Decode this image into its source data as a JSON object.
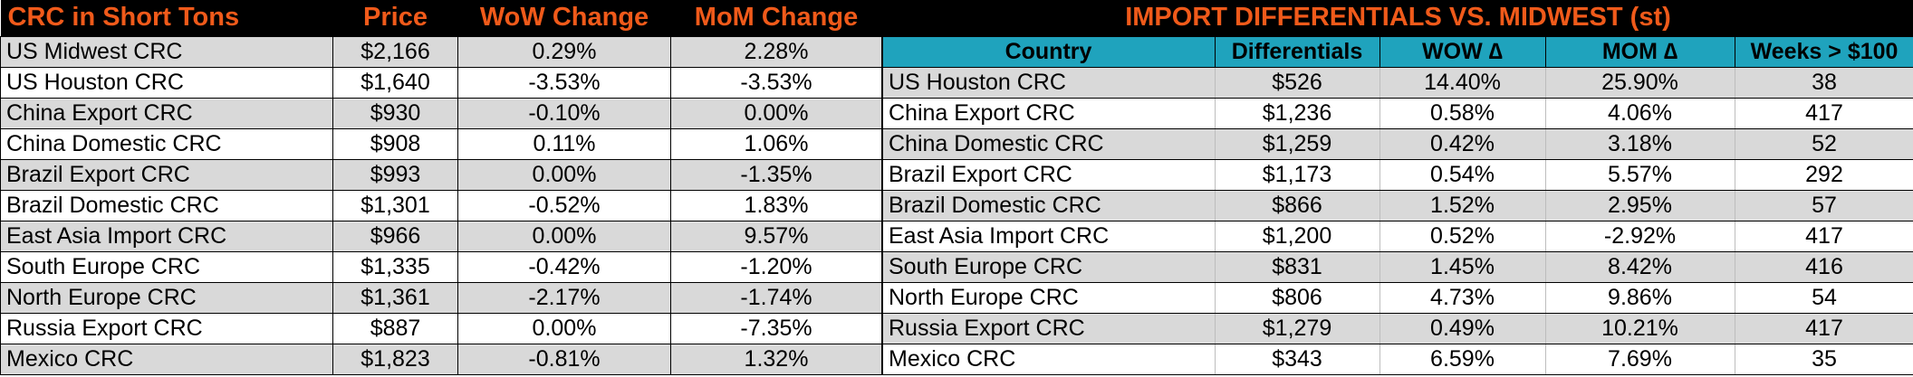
{
  "prices_table": {
    "headers": [
      "CRC in Short Tons",
      "Price",
      "WoW Change",
      "MoM Change"
    ],
    "rows": [
      [
        "US Midwest CRC",
        "$2,166",
        "0.29%",
        "2.28%"
      ],
      [
        "US Houston CRC",
        "$1,640",
        "-3.53%",
        "-3.53%"
      ],
      [
        "China Export CRC",
        "$930",
        "-0.10%",
        "0.00%"
      ],
      [
        "China Domestic CRC",
        "$908",
        "0.11%",
        "1.06%"
      ],
      [
        "Brazil Export CRC",
        "$993",
        "0.00%",
        "-1.35%"
      ],
      [
        "Brazil Domestic CRC",
        "$1,301",
        "-0.52%",
        "1.83%"
      ],
      [
        "East Asia Import CRC",
        "$966",
        "0.00%",
        "9.57%"
      ],
      [
        "South Europe CRC",
        "$1,335",
        "-0.42%",
        "-1.20%"
      ],
      [
        "North Europe CRC",
        "$1,361",
        "-2.17%",
        "-1.74%"
      ],
      [
        "Russia Export CRC",
        "$887",
        "0.00%",
        "-7.35%"
      ],
      [
        "Mexico CRC",
        "$1,823",
        "-0.81%",
        "1.32%"
      ]
    ]
  },
  "differentials_table": {
    "title": "IMPORT DIFFERENTIALS VS. MIDWEST (st)",
    "headers": [
      "Country",
      "Differentials",
      "WOW ∆",
      "MOM ∆",
      "Weeks > $100"
    ],
    "rows": [
      [
        "US Houston CRC",
        "$526",
        "14.40%",
        "25.90%",
        "38"
      ],
      [
        "China Export CRC",
        "$1,236",
        "0.58%",
        "4.06%",
        "417"
      ],
      [
        "China Domestic CRC",
        "$1,259",
        "0.42%",
        "3.18%",
        "52"
      ],
      [
        "Brazil Export CRC",
        "$1,173",
        "0.54%",
        "5.57%",
        "292"
      ],
      [
        "Brazil Domestic CRC",
        "$866",
        "1.52%",
        "2.95%",
        "57"
      ],
      [
        "East Asia Import CRC",
        "$1,200",
        "0.52%",
        "-2.92%",
        "417"
      ],
      [
        "South Europe CRC",
        "$831",
        "1.45%",
        "8.42%",
        "416"
      ],
      [
        "North Europe CRC",
        "$806",
        "4.73%",
        "9.86%",
        "54"
      ],
      [
        "Russia Export CRC",
        "$1,279",
        "0.49%",
        "10.21%",
        "417"
      ],
      [
        "Mexico CRC",
        "$343",
        "6.59%",
        "7.69%",
        "35"
      ]
    ]
  },
  "colors": {
    "title_background": "#000000",
    "title_text": "#f05a1a",
    "header_background": "#1fa3bd",
    "row_stripe": "#d9d9d9"
  }
}
